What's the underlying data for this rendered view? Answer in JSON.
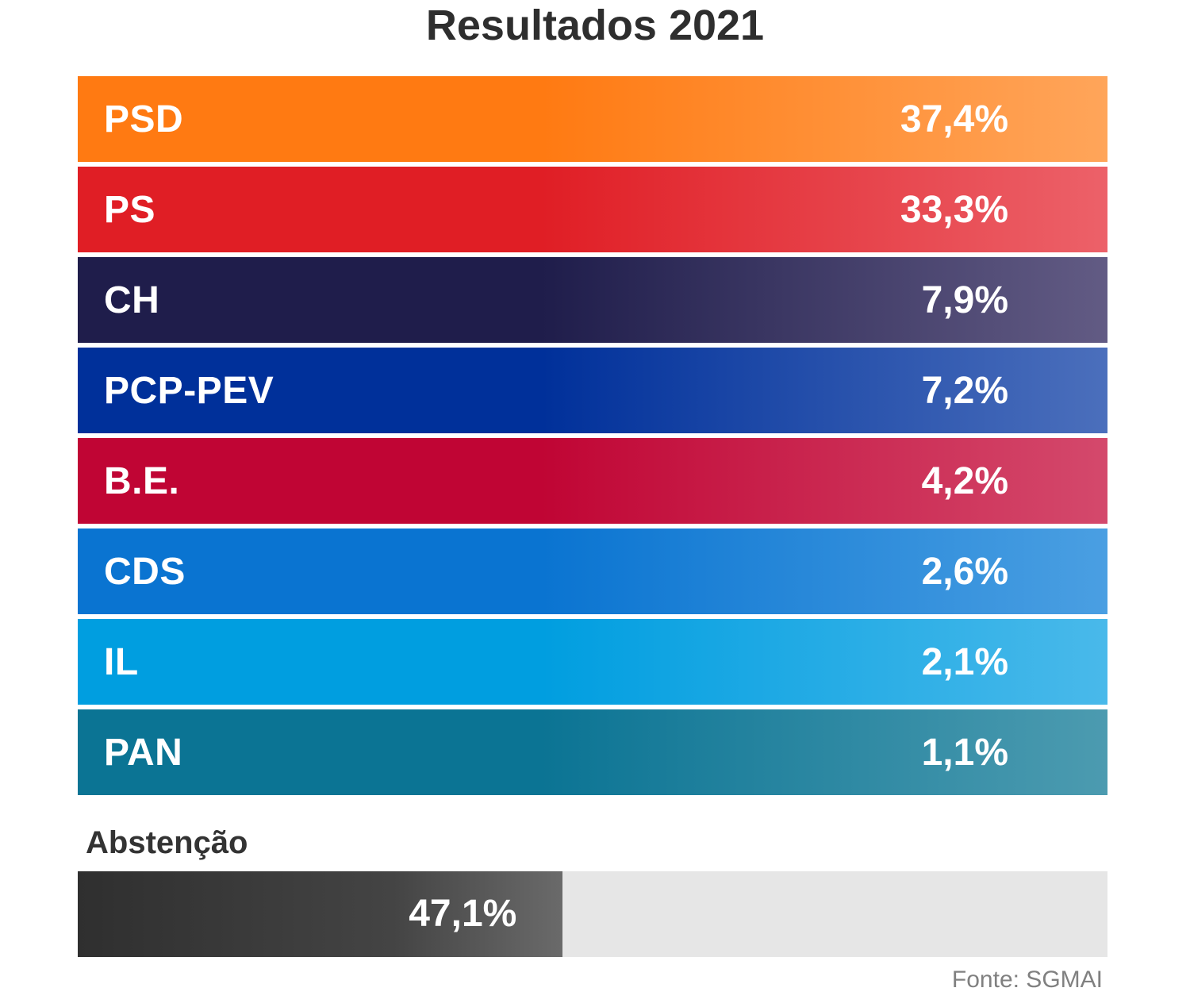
{
  "title": "Resultados 2021",
  "chart_data": {
    "type": "table",
    "title": "Resultados 2021",
    "categories": [
      "PSD",
      "PS",
      "CH",
      "PCP-PEV",
      "B.E.",
      "CDS",
      "IL",
      "PAN"
    ],
    "values": [
      37.4,
      33.3,
      7.9,
      7.2,
      4.2,
      2.6,
      2.1,
      1.1
    ],
    "rows": [
      {
        "party": "PSD",
        "value": 37.4,
        "label": "37,4%",
        "color_start": "#ff7a12",
        "color_end": "#ffa55a"
      },
      {
        "party": "PS",
        "value": 33.3,
        "label": "33,3%",
        "color_start": "#e01e25",
        "color_end": "#ec6169"
      },
      {
        "party": "CH",
        "value": 7.9,
        "label": "7,9%",
        "color_start": "#1f1d4b",
        "color_end": "#625b84"
      },
      {
        "party": "PCP-PEV",
        "value": 7.2,
        "label": "7,2%",
        "color_start": "#00309a",
        "color_end": "#4b6fbc"
      },
      {
        "party": "B.E.",
        "value": 4.2,
        "label": "4,2%",
        "color_start": "#c00534",
        "color_end": "#d4496c"
      },
      {
        "party": "CDS",
        "value": 2.6,
        "label": "2,6%",
        "color_start": "#0a74d1",
        "color_end": "#4a9fe2"
      },
      {
        "party": "IL",
        "value": 2.1,
        "label": "2,1%",
        "color_start": "#009ee0",
        "color_end": "#49b9ea"
      },
      {
        "party": "PAN",
        "value": 1.1,
        "label": "1,1%",
        "color_start": "#0b7494",
        "color_end": "#4c9bb0"
      }
    ],
    "abstention": {
      "label": "Abstenção",
      "value": 47.1,
      "value_label": "47,1%",
      "track_color": "#e6e6e6",
      "fill_color": "#3a3a3a"
    },
    "source": "Fonte: SGMAI"
  }
}
